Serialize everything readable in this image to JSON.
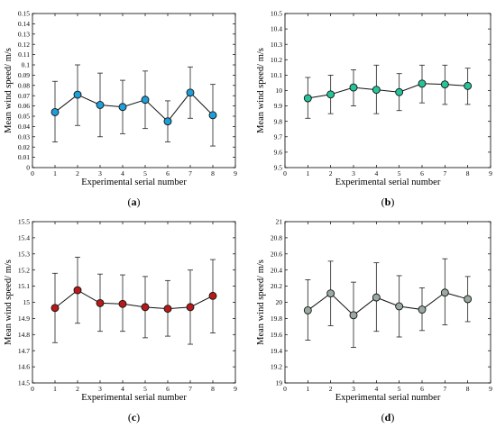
{
  "chart_data": [
    {
      "type": "line",
      "panel_label": "(a)",
      "caption_letter": "a",
      "xlabel": "Experimental serial number",
      "ylabel": "Mean wind speed/ m/s",
      "xlim": [
        0,
        9
      ],
      "ylim": [
        0,
        0.15
      ],
      "xticks": [
        "0",
        "1",
        "2",
        "3",
        "4",
        "5",
        "6",
        "7",
        "8",
        "9"
      ],
      "yticks": [
        "0",
        "0.01",
        "0.02",
        "0.03",
        "0.04",
        "0.05",
        "0.06",
        "0.07",
        "0.08",
        "0.09",
        "0.1",
        "0.11",
        "0.12",
        "0.13",
        "0.14",
        "0.15"
      ],
      "marker_color": "#1f9fd9",
      "x": [
        1,
        2,
        3,
        4,
        5,
        6,
        7,
        8
      ],
      "y": [
        0.054,
        0.071,
        0.061,
        0.059,
        0.066,
        0.045,
        0.073,
        0.051
      ],
      "err_low": [
        0.025,
        0.041,
        0.03,
        0.033,
        0.038,
        0.025,
        0.048,
        0.021
      ],
      "err_high": [
        0.084,
        0.1,
        0.092,
        0.085,
        0.094,
        0.065,
        0.098,
        0.081
      ]
    },
    {
      "type": "line",
      "panel_label": "(b)",
      "caption_letter": "b",
      "xlabel": "Experimental serial number",
      "ylabel": "Mean wind speed/ m/s",
      "xlim": [
        0,
        9
      ],
      "ylim": [
        9.5,
        10.5
      ],
      "xticks": [
        "0",
        "1",
        "2",
        "3",
        "4",
        "5",
        "6",
        "7",
        "8",
        "9"
      ],
      "yticks": [
        "9.5",
        "9.6",
        "9.7",
        "9.8",
        "9.9",
        "10",
        "10.1",
        "10.2",
        "10.3",
        "10.4",
        "10.5"
      ],
      "marker_color": "#25c49a",
      "x": [
        1,
        2,
        3,
        4,
        5,
        6,
        7,
        8
      ],
      "y": [
        9.95,
        9.975,
        10.02,
        10.005,
        9.99,
        10.045,
        10.04,
        10.03
      ],
      "err_low": [
        9.82,
        9.85,
        9.9,
        9.85,
        9.87,
        9.92,
        9.91,
        9.91
      ],
      "err_high": [
        10.085,
        10.1,
        10.135,
        10.165,
        10.11,
        10.165,
        10.165,
        10.145
      ]
    },
    {
      "type": "line",
      "panel_label": "(c)",
      "caption_letter": "c",
      "xlabel": "Experimental serial number",
      "ylabel": "Mean wind speed/ m/s",
      "xlim": [
        0,
        9
      ],
      "ylim": [
        14.5,
        15.5
      ],
      "xticks": [
        "0",
        "1",
        "2",
        "3",
        "4",
        "5",
        "6",
        "7",
        "8",
        "9"
      ],
      "yticks": [
        "14.5",
        "14.6",
        "14.7",
        "14.8",
        "14.9",
        "15",
        "15.1",
        "15.2",
        "15.3",
        "15.4",
        "15.5"
      ],
      "marker_color": "#b81a1a",
      "x": [
        1,
        2,
        3,
        4,
        5,
        6,
        7,
        8
      ],
      "y": [
        14.965,
        15.075,
        14.995,
        14.99,
        14.97,
        14.96,
        14.97,
        15.04
      ],
      "err_low": [
        14.75,
        14.87,
        14.82,
        14.82,
        14.78,
        14.79,
        14.74,
        14.81
      ],
      "err_high": [
        15.18,
        15.28,
        15.175,
        15.17,
        15.16,
        15.135,
        15.2,
        15.265
      ]
    },
    {
      "type": "line",
      "panel_label": "(d)",
      "caption_letter": "d",
      "xlabel": "Experimental serial number",
      "ylabel": "Mean wind speed/ m/s",
      "xlim": [
        0,
        9
      ],
      "ylim": [
        19,
        21
      ],
      "xticks": [
        "0",
        "1",
        "2",
        "3",
        "4",
        "5",
        "6",
        "7",
        "8",
        "9"
      ],
      "yticks": [
        "19",
        "19.2",
        "19.4",
        "19.6",
        "19.8",
        "20",
        "20.2",
        "20.4",
        "20.6",
        "20.8",
        "21"
      ],
      "marker_color": "#9aaaa0",
      "x": [
        1,
        2,
        3,
        4,
        5,
        6,
        7,
        8
      ],
      "y": [
        19.9,
        20.11,
        19.84,
        20.06,
        19.95,
        19.91,
        20.12,
        20.04
      ],
      "err_low": [
        19.53,
        19.71,
        19.44,
        19.64,
        19.57,
        19.65,
        19.72,
        19.76
      ],
      "err_high": [
        20.28,
        20.51,
        20.25,
        20.49,
        20.33,
        20.18,
        20.54,
        20.32
      ]
    }
  ]
}
